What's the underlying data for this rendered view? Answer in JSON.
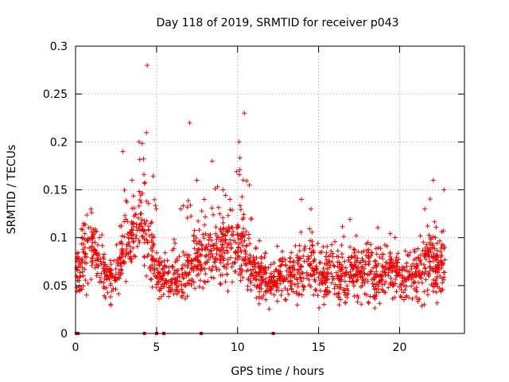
{
  "chart_data": {
    "type": "scatter",
    "title": "Day 118 of 2019, SRMTID for receiver p043",
    "xlabel": "GPS time / hours",
    "ylabel": "SRMTID / TECUs",
    "xlim": [
      0,
      24
    ],
    "ylim": [
      0,
      0.3
    ],
    "xticks": [
      0,
      5,
      10,
      15,
      20
    ],
    "xtick_labels": [
      "0",
      "5",
      "10",
      "15",
      "20"
    ],
    "yticks": [
      0,
      0.05,
      0.1,
      0.15,
      0.2,
      0.25,
      0.3
    ],
    "ytick_labels": [
      "0",
      "0.05",
      "0.1",
      "0.15",
      "0.2",
      "0.25",
      "0.3"
    ],
    "grid": true,
    "marker": "+",
    "color": "#ee0000",
    "series_name": "SRMTID",
    "envelope_hours": [
      0,
      0.5,
      1,
      1.5,
      2,
      2.5,
      3,
      3.5,
      4,
      4.5,
      5,
      5.5,
      6,
      6.5,
      7,
      7.5,
      8,
      8.5,
      9,
      9.5,
      10,
      10.5,
      11,
      11.5,
      12,
      12.5,
      13,
      13.5,
      14,
      14.5,
      15,
      15.5,
      16,
      16.5,
      17,
      17.5,
      18,
      18.5,
      19,
      19.5,
      20,
      20.5,
      21,
      21.5,
      22,
      22.5,
      22.8
    ],
    "envelope_median": [
      0.06,
      0.08,
      0.09,
      0.075,
      0.055,
      0.055,
      0.085,
      0.1,
      0.11,
      0.09,
      0.06,
      0.055,
      0.05,
      0.055,
      0.065,
      0.08,
      0.08,
      0.085,
      0.09,
      0.085,
      0.09,
      0.085,
      0.06,
      0.055,
      0.05,
      0.055,
      0.055,
      0.06,
      0.065,
      0.07,
      0.06,
      0.055,
      0.06,
      0.055,
      0.06,
      0.06,
      0.065,
      0.06,
      0.06,
      0.065,
      0.06,
      0.055,
      0.06,
      0.065,
      0.07,
      0.065,
      0.07
    ],
    "envelope_max": [
      0.1,
      0.12,
      0.13,
      0.11,
      0.09,
      0.12,
      0.19,
      0.16,
      0.2,
      0.28,
      0.13,
      0.1,
      0.11,
      0.13,
      0.22,
      0.16,
      0.14,
      0.18,
      0.15,
      0.14,
      0.2,
      0.23,
      0.12,
      0.1,
      0.1,
      0.11,
      0.1,
      0.1,
      0.14,
      0.13,
      0.12,
      0.11,
      0.12,
      0.12,
      0.12,
      0.11,
      0.12,
      0.11,
      0.12,
      0.12,
      0.11,
      0.1,
      0.11,
      0.13,
      0.16,
      0.12,
      0.15
    ],
    "envelope_min": [
      0.03,
      0.03,
      0.04,
      0.03,
      0.02,
      0.03,
      0.04,
      0.05,
      0.06,
      0.04,
      0.03,
      0.03,
      0.02,
      0.02,
      0.03,
      0.04,
      0.04,
      0.05,
      0.04,
      0.03,
      0.04,
      0.04,
      0.03,
      0.02,
      0.02,
      0.03,
      0.02,
      0.02,
      0.03,
      0.03,
      0.02,
      0.02,
      0.02,
      0.02,
      0.02,
      0.02,
      0.02,
      0.02,
      0.02,
      0.03,
      0.02,
      0.02,
      0.02,
      0.02,
      0.02,
      0.03,
      0.03
    ],
    "zero_value_hours": [
      0.05,
      0.15,
      4.25,
      5.0,
      5.45,
      7.75,
      12.2
    ]
  }
}
